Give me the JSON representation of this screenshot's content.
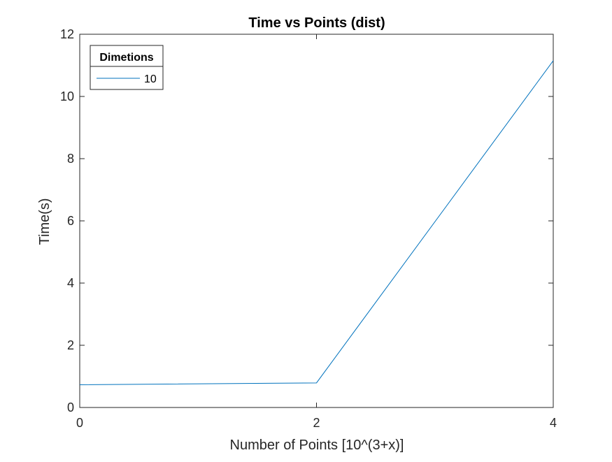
{
  "chart_data": {
    "type": "line",
    "title": "Time vs Points (dist)",
    "xlabel": "Number of Points [10^(3+x)]",
    "ylabel": "Time(s)",
    "xlim": [
      0,
      4
    ],
    "ylim": [
      0,
      12
    ],
    "xticks": [
      0,
      2,
      4
    ],
    "yticks": [
      0,
      2,
      4,
      6,
      8,
      10,
      12
    ],
    "grid": false,
    "legend": {
      "title": "Dimetions",
      "placement": "top-left",
      "entries": [
        "10"
      ]
    },
    "series": [
      {
        "name": "10",
        "color": "#0072BD",
        "x": [
          0,
          2,
          4
        ],
        "y": [
          0.73,
          0.79,
          11.15
        ]
      }
    ]
  }
}
